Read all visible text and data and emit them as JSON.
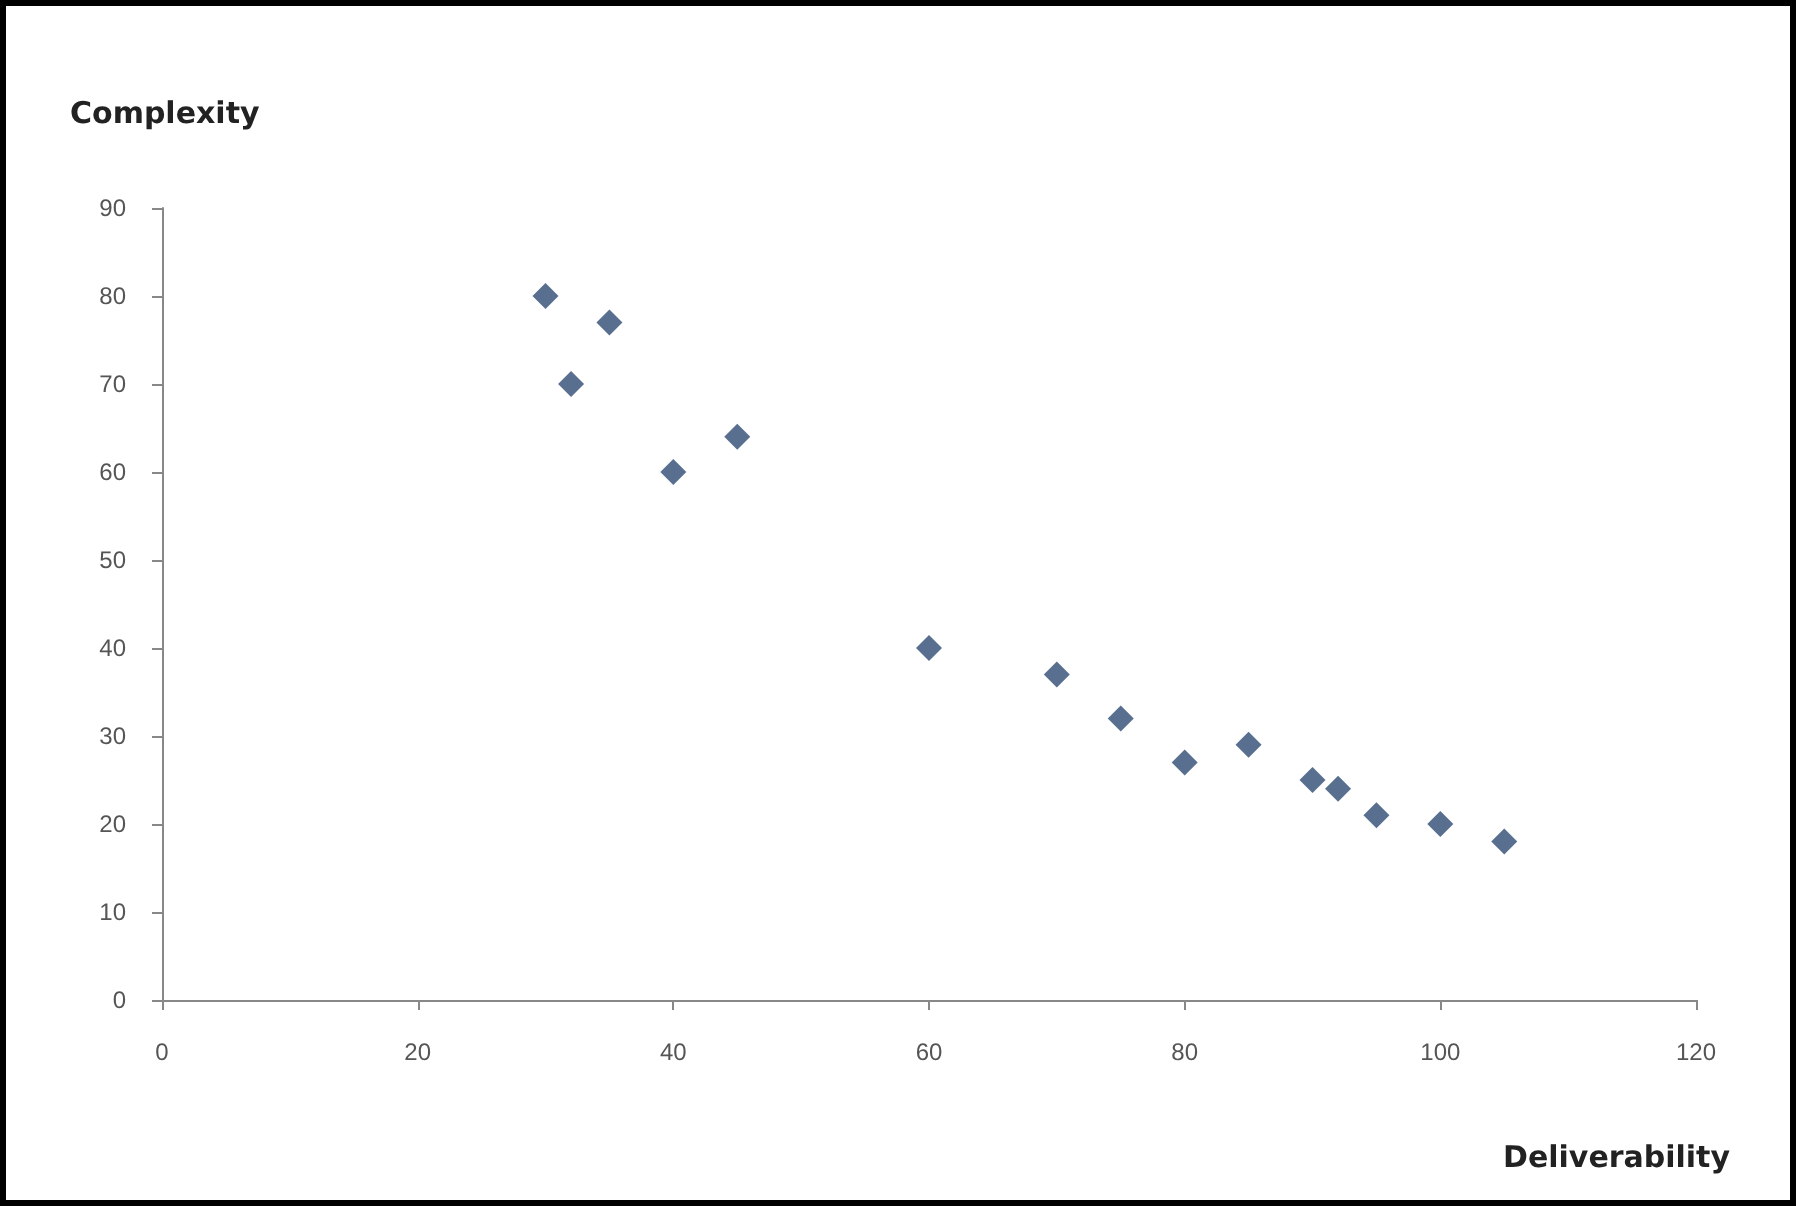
{
  "chart_data": {
    "type": "scatter",
    "xlabel": "Deliverability",
    "ylabel": "Complexity",
    "x": [
      30,
      32,
      35,
      40,
      45,
      60,
      70,
      75,
      80,
      85,
      90,
      92,
      95,
      100,
      105
    ],
    "series": [
      {
        "color": "#2e4b73",
        "values": [
          80,
          70,
          77,
          60,
          64,
          40,
          37,
          32,
          27,
          29,
          25,
          24,
          21,
          20,
          18
        ]
      }
    ],
    "xlim": [
      0,
      120
    ],
    "xticks": [
      0,
      20,
      40,
      60,
      80,
      100,
      120
    ],
    "ylim": [
      0,
      90
    ],
    "yticks": [
      0,
      10,
      20,
      30,
      40,
      50,
      60,
      70,
      80,
      90
    ],
    "grid": false,
    "marker": "diamond"
  }
}
